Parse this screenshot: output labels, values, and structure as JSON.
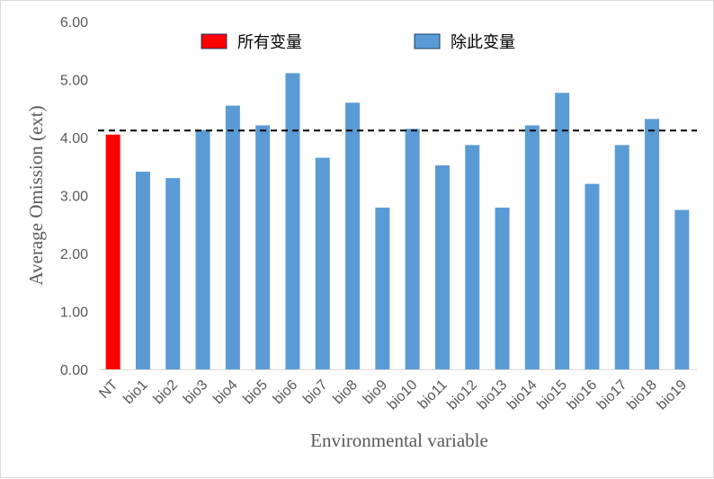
{
  "chart_data": {
    "type": "bar",
    "title": "",
    "xlabel": "Environmental variable",
    "ylabel": "Average Omission (ext)",
    "ylim": [
      0,
      6
    ],
    "yticks": [
      "0.00",
      "1.00",
      "2.00",
      "3.00",
      "4.00",
      "5.00",
      "6.00"
    ],
    "categories": [
      "NT",
      "bio1",
      "bio2",
      "bio3",
      "bio4",
      "bio5",
      "bio6",
      "bio7",
      "bio8",
      "bio9",
      "bio10",
      "bio11",
      "bio12",
      "bio13",
      "bio14",
      "bio15",
      "bio16",
      "bio17",
      "bio18",
      "bio19"
    ],
    "series": [
      {
        "name": "所有变量",
        "color": "#ff0000",
        "values": [
          4.05,
          null,
          null,
          null,
          null,
          null,
          null,
          null,
          null,
          null,
          null,
          null,
          null,
          null,
          null,
          null,
          null,
          null,
          null,
          null
        ]
      },
      {
        "name": "除此变量",
        "color": "#5b9bd5",
        "values": [
          null,
          3.41,
          3.3,
          4.13,
          4.55,
          4.21,
          5.11,
          3.65,
          4.6,
          2.79,
          4.15,
          3.52,
          3.87,
          2.79,
          4.21,
          4.77,
          3.2,
          3.87,
          4.32,
          2.75
        ]
      }
    ],
    "reference_line": {
      "value": 4.12,
      "style": "dashed",
      "color": "#000000"
    },
    "legend": {
      "placement": "top-center"
    },
    "grid": false
  }
}
